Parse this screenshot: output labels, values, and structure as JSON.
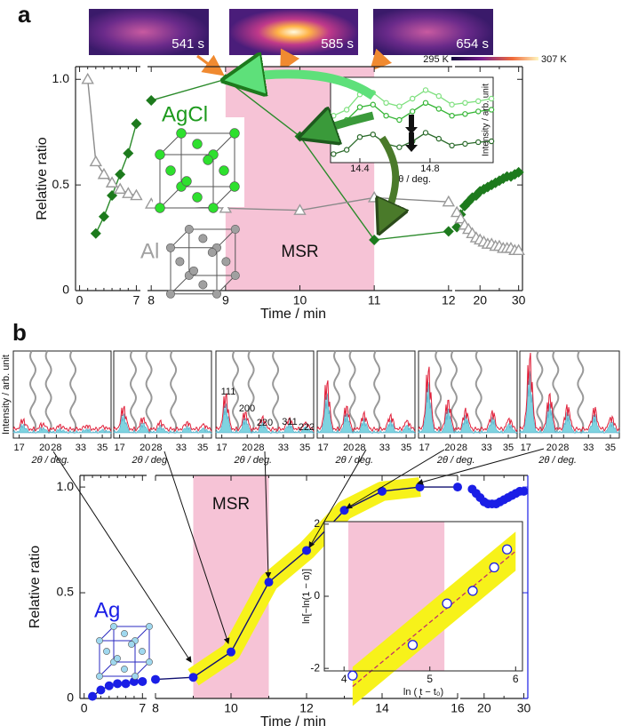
{
  "panel_labels": [
    "a",
    "b"
  ],
  "thermal_images": {
    "labels": [
      "541 s",
      "585 s",
      "654 s"
    ],
    "colorbar_labels": [
      "295 K",
      "307 K"
    ]
  },
  "xrd_panels": {
    "ylabel": "Intensity / arb. unit",
    "xlabel": "2θ / deg.",
    "xticks": [
      17,
      20,
      28,
      33,
      35
    ],
    "peak_labels": [
      "111",
      "200",
      "220",
      "311",
      "222"
    ]
  },
  "chart_data": [
    {
      "type": "scatter-line",
      "xlabel": "Time / min",
      "ylabel": "Relative ratio",
      "ylim": [
        0,
        1.06
      ],
      "yticks": [
        0,
        0.5,
        {
          "value": 1,
          "label": "1.0"
        }
      ],
      "x_segments": [
        {
          "xlim": [
            -0.5,
            7.5
          ],
          "xticks": [
            0,
            7
          ],
          "minor_xticks": [
            1,
            2,
            3,
            4,
            5,
            6
          ]
        },
        {
          "xlim": [
            7.95,
            12.05
          ],
          "xticks": [
            8,
            9,
            10,
            11,
            12
          ],
          "minor_xticks": []
        },
        {
          "xlim": [
            13.5,
            31
          ],
          "xticks": [
            20,
            30
          ],
          "minor_xticks": [
            25
          ]
        }
      ],
      "shaded_region": {
        "label": "MSR",
        "x": [
          9,
          11
        ],
        "color": "#f6c3d6"
      },
      "series": [
        {
          "name": "AgCl",
          "color": "#1d7a1d",
          "marker": "diamond",
          "x": [
            2,
            3,
            4,
            5,
            6,
            7,
            8,
            9,
            10,
            11,
            12,
            14,
            15,
            16,
            17,
            18,
            19,
            20,
            21,
            22,
            23,
            24,
            25,
            26,
            27,
            28,
            29,
            30
          ],
          "values": [
            0.27,
            0.35,
            0.45,
            0.55,
            0.65,
            0.79,
            0.9,
            1.0,
            0.73,
            0.24,
            0.28,
            0.3,
            0.36,
            0.4,
            0.42,
            0.44,
            0.45,
            0.47,
            0.48,
            0.49,
            0.5,
            0.51,
            0.52,
            0.53,
            0.54,
            0.54,
            0.55,
            0.56
          ]
        },
        {
          "name": "Al",
          "color": "#9a9a9a",
          "marker": "triangle",
          "x": [
            1,
            2,
            3,
            4,
            5,
            6,
            7,
            8,
            9,
            10,
            11,
            12,
            14,
            15,
            16,
            17,
            18,
            19,
            20,
            21,
            22,
            23,
            24,
            25,
            26,
            27,
            28,
            29,
            30
          ],
          "values": [
            1.0,
            0.61,
            0.55,
            0.51,
            0.48,
            0.46,
            0.45,
            0.41,
            0.39,
            0.38,
            0.44,
            0.42,
            0.37,
            0.34,
            0.31,
            0.29,
            0.27,
            0.25,
            0.24,
            0.23,
            0.22,
            0.22,
            0.21,
            0.21,
            0.2,
            0.2,
            0.2,
            0.19,
            0.19
          ]
        }
      ]
    },
    {
      "type": "line",
      "xlabel": "2θ / deg.",
      "ylabel": "Intensity / arb. unit",
      "xlim": [
        14.233,
        15.16
      ],
      "xticks": [
        14.4,
        14.8
      ],
      "ylim": [
        0,
        1
      ],
      "x": [
        14.25,
        14.325,
        14.4,
        14.475,
        14.55,
        14.625,
        14.7,
        14.775,
        14.85,
        14.925,
        15.0,
        15.075,
        15.15
      ],
      "series": [
        {
          "color": "#7fe07f",
          "values": [
            0.55,
            0.62,
            0.8,
            0.82,
            0.7,
            0.66,
            0.75,
            0.85,
            0.78,
            0.68,
            0.7,
            0.72,
            0.75
          ]
        },
        {
          "color": "#35b535",
          "values": [
            0.45,
            0.5,
            0.65,
            0.68,
            0.55,
            0.5,
            0.6,
            0.7,
            0.63,
            0.55,
            0.57,
            0.6,
            0.62
          ]
        },
        {
          "color": "#2a6a2a",
          "values": [
            0.1,
            0.15,
            0.3,
            0.33,
            0.22,
            0.18,
            0.25,
            0.35,
            0.28,
            0.2,
            0.22,
            0.24,
            0.25
          ]
        }
      ]
    },
    {
      "type": "scatter-line",
      "xlabel": "Time / min",
      "ylabel": "Relative ratio",
      "ylim": [
        0,
        1.055
      ],
      "yticks": [
        0,
        0.5,
        {
          "value": 1,
          "label": "1.0"
        }
      ],
      "x_segments": [
        {
          "xlim": [
            -0.5,
            7.5
          ],
          "xticks": [
            0,
            7
          ],
          "minor_xticks": [
            1,
            2,
            3,
            4,
            5,
            6
          ]
        },
        {
          "xlim": [
            8,
            16
          ],
          "xticks": [
            8,
            10,
            12,
            14,
            16
          ],
          "minor_xticks": [
            9,
            11,
            13,
            15
          ]
        },
        {
          "xlim": [
            14,
            31
          ],
          "xticks": [
            20,
            30
          ],
          "minor_xticks": [
            25
          ]
        }
      ],
      "shaded_region": {
        "label": "MSR",
        "x": [
          9,
          11
        ],
        "color": "#f6c3d6"
      },
      "band": {
        "color": "#f7f21a",
        "x": [
          9,
          15
        ]
      },
      "series": [
        {
          "name": "Ag",
          "color": "#1a1ee6",
          "marker": "circle",
          "x": [
            1,
            2,
            3,
            4,
            5,
            6,
            7,
            8,
            9,
            10,
            11,
            12,
            13,
            14,
            15,
            16,
            17,
            18,
            19,
            20,
            21,
            22,
            23,
            24,
            25,
            26,
            27,
            28,
            29,
            30
          ],
          "values": [
            0.01,
            0.04,
            0.06,
            0.07,
            0.07,
            0.08,
            0.08,
            0.09,
            0.1,
            0.22,
            0.55,
            0.7,
            0.89,
            0.98,
            1.0,
            1.0,
            0.99,
            0.97,
            0.95,
            0.93,
            0.92,
            0.92,
            0.92,
            0.93,
            0.94,
            0.95,
            0.96,
            0.97,
            0.98,
            0.98
          ]
        }
      ]
    },
    {
      "type": "scatter",
      "xlabel": "ln ( t − t₀)",
      "ylabel": "ln[−ln(1 − α)]",
      "xlim": [
        3.77,
        6.08
      ],
      "xticks": [
        4,
        5,
        6
      ],
      "ylim": [
        -2.07,
        2.07
      ],
      "yticks": [
        -2,
        0,
        2
      ],
      "shaded_region": {
        "x": [
          4.05,
          5.17
        ],
        "color": "#f6c3d6"
      },
      "x": [
        4.1,
        4.8,
        5.2,
        5.5,
        5.75,
        5.9
      ],
      "values": [
        -2.2,
        -1.35,
        -0.2,
        0.15,
        0.8,
        1.3
      ],
      "fit": {
        "x": [
          4.1,
          6.0
        ],
        "values": [
          -2.5,
          1.25
        ],
        "color": "#c0306a",
        "band_color": "#f7f21a"
      },
      "color": "#1a1ee6"
    }
  ]
}
